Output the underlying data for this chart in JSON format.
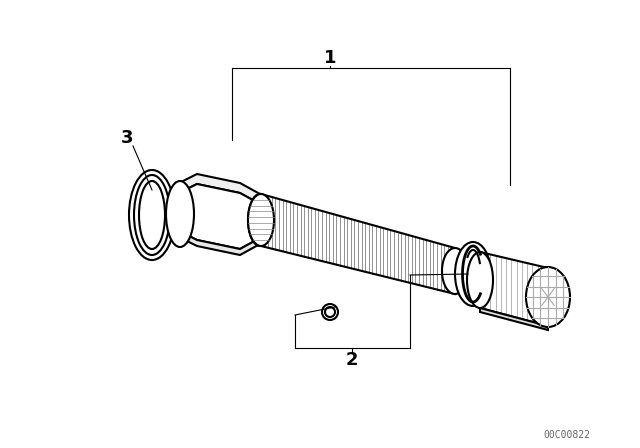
{
  "bg_color": "#ffffff",
  "line_color": "#000000",
  "label1": "1",
  "label2": "2",
  "label3": "3",
  "watermark": "00C00822",
  "fig_width": 6.4,
  "fig_height": 4.48,
  "dpi": 100
}
